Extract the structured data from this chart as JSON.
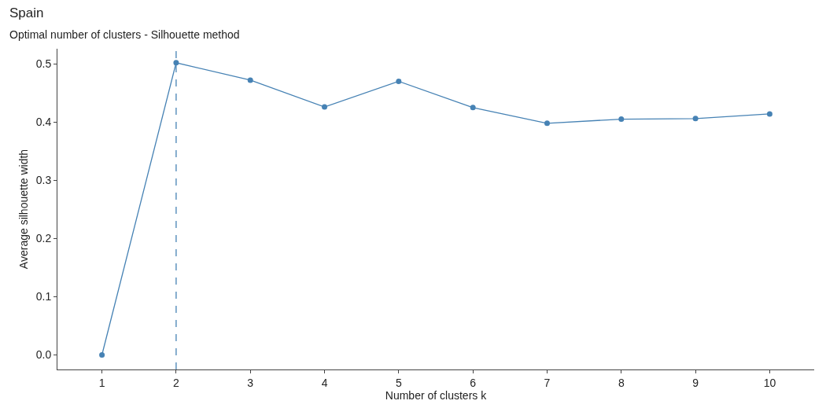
{
  "chart_data": {
    "type": "line",
    "title": "Spain",
    "subtitle": "Optimal number of clusters - Silhouette method",
    "xlabel": "Number of clusters k",
    "ylabel": "Average silhouette width",
    "categories": [
      "1",
      "2",
      "3",
      "4",
      "5",
      "6",
      "7",
      "8",
      "9",
      "10"
    ],
    "series": [
      {
        "color": "#4682b4",
        "values": [
          0.0,
          0.502,
          0.472,
          0.426,
          0.47,
          0.425,
          0.398,
          0.405,
          0.406,
          0.414
        ]
      }
    ],
    "ylim": [
      -0.025,
      0.526
    ],
    "yticks": [
      {
        "value": 0,
        "label": "0.0"
      },
      0.1,
      0.2,
      0.3,
      0.4,
      0.5
    ],
    "ref_lines": [
      {
        "axis": "x",
        "value": "2",
        "color": "#4682b4",
        "line_style": "dashed"
      }
    ],
    "marker": "circle",
    "line_style": "solid"
  }
}
